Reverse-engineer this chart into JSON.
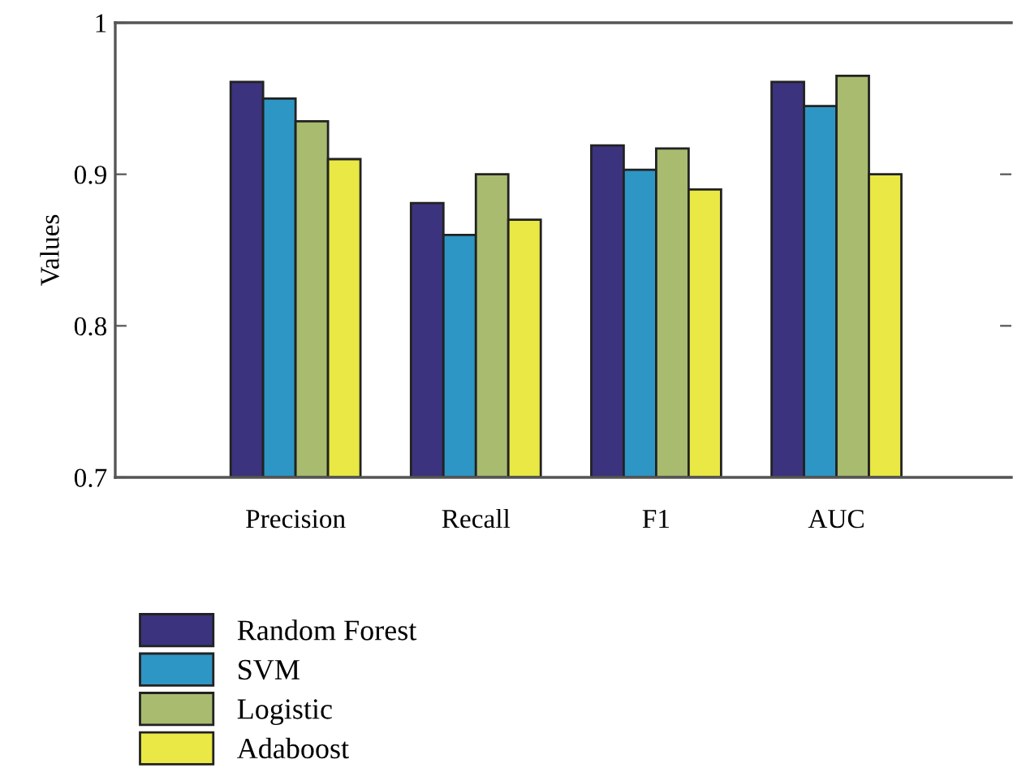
{
  "chart_data": {
    "type": "bar",
    "ylabel": "Values",
    "categories": [
      "Precision",
      "Recall",
      "F1",
      "AUC"
    ],
    "series": [
      {
        "name": "Random Forest",
        "color": "#3b337d",
        "values": [
          0.961,
          0.881,
          0.919,
          0.961
        ]
      },
      {
        "name": "SVM",
        "color": "#2e96c5",
        "values": [
          0.95,
          0.86,
          0.903,
          0.945
        ]
      },
      {
        "name": "Logistic",
        "color": "#a8bb6f",
        "values": [
          0.935,
          0.9,
          0.917,
          0.965
        ]
      },
      {
        "name": "Adaboost",
        "color": "#e9e845",
        "values": [
          0.91,
          0.87,
          0.89,
          0.9
        ]
      }
    ],
    "ylim": [
      0.7,
      1
    ],
    "yticks": [
      0.7,
      0.8,
      0.9,
      1
    ],
    "grid": false,
    "legend": "bottom"
  }
}
